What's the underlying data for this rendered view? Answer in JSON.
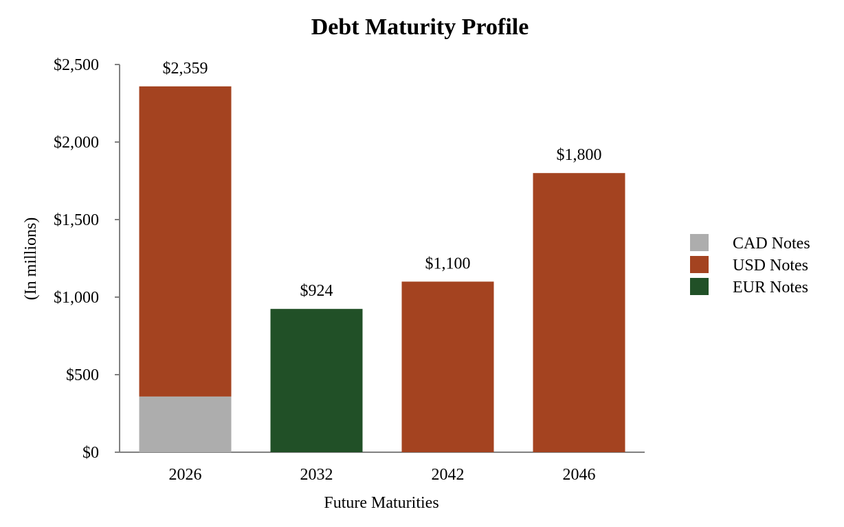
{
  "chart_data": {
    "type": "bar",
    "stacked": true,
    "title": "Debt Maturity Profile",
    "xlabel": "Future Maturities",
    "ylabel": "(In millions)",
    "categories": [
      "2026",
      "2032",
      "2042",
      "2046"
    ],
    "ylim": [
      0,
      2500
    ],
    "yticks": [
      0,
      500,
      1000,
      1500,
      2000,
      2500
    ],
    "ytick_labels": [
      "$0",
      "$500",
      "$1,000",
      "$1,500",
      "$2,000",
      "$2,500"
    ],
    "series": [
      {
        "name": "CAD Notes",
        "color": "#adadad",
        "values": [
          359,
          0,
          0,
          0
        ]
      },
      {
        "name": "USD Notes",
        "color": "#a44320",
        "values": [
          2000,
          0,
          1100,
          1800
        ]
      },
      {
        "name": "EUR Notes",
        "color": "#215027",
        "values": [
          0,
          924,
          0,
          0
        ]
      }
    ],
    "totals": [
      2359,
      924,
      1100,
      1800
    ],
    "total_labels": [
      "$2,359",
      "$924",
      "$1,100",
      "$1,800"
    ],
    "legend_position": "right",
    "grid": false,
    "axis_color": "#808080"
  }
}
